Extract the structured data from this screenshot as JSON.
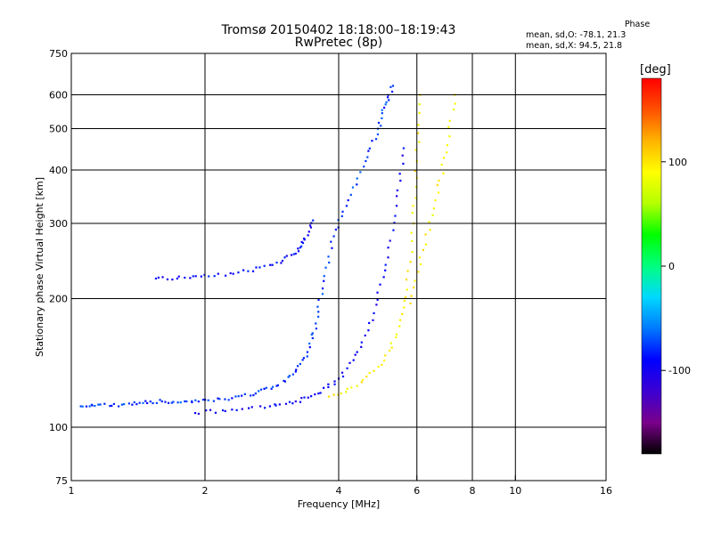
{
  "chart_data": {
    "type": "scatter",
    "title": "Tromsø 20150402 18:18:00–18:19:43",
    "subtitle": "RwPretec (8p)",
    "xlabel": "Frequency [MHz]",
    "ylabel": "Stationary phase Virtual Height [km]",
    "xscale": "log",
    "yscale": "log",
    "xlim": [
      1,
      16
    ],
    "ylim": [
      75,
      750
    ],
    "x_ticks": [
      1,
      2,
      4,
      6,
      8,
      10,
      16
    ],
    "x_tick_labels": [
      "1",
      "2",
      "4",
      "6",
      "8",
      "10",
      "16"
    ],
    "y_ticks": [
      75,
      100,
      200,
      300,
      400,
      500,
      600,
      750
    ],
    "y_tick_labels": [
      "75",
      "100",
      "200",
      "300",
      "400",
      "500",
      "600",
      "750"
    ],
    "grid_x": [
      2,
      4,
      6,
      8,
      10
    ],
    "grid_y": [
      100,
      200,
      300,
      400,
      500,
      600
    ],
    "colorbar": {
      "label": "[deg]",
      "range": [
        -180,
        180
      ],
      "ticks": [
        100,
        0,
        -100
      ],
      "tick_labels": [
        "100",
        "0",
        "-100"
      ],
      "colormap": [
        "#000000",
        "#7a008a",
        "#3c00d2",
        "#0000ff",
        "#0078ff",
        "#00d8ff",
        "#00ff80",
        "#00ff00",
        "#b4ff00",
        "#ffff00",
        "#ffb400",
        "#ff5000",
        "#ff0000"
      ]
    },
    "phase_stats": {
      "header": "Phase",
      "line_o": "mean, sd,O: -78.1, 21.3",
      "line_x": "mean, sd,X:  94.5, 21.8"
    },
    "series": [
      {
        "mode": "O",
        "phase": -78,
        "x": [
          1.05,
          1.15,
          1.3,
          1.45,
          1.6,
          1.8,
          2.0,
          2.3,
          2.6,
          2.9,
          3.2,
          3.4,
          3.55,
          3.7,
          3.9,
          4.2,
          4.6,
          4.9,
          5.1,
          5.3
        ],
        "y": [
          112,
          113,
          113,
          114,
          115,
          115,
          116,
          117,
          120,
          125,
          135,
          150,
          175,
          220,
          280,
          340,
          420,
          500,
          570,
          630
        ]
      },
      {
        "mode": "O",
        "phase": -90,
        "x": [
          1.55,
          1.8,
          2.1,
          2.5,
          2.9,
          3.2,
          3.35,
          3.5
        ],
        "y": [
          223,
          224,
          226,
          232,
          243,
          255,
          275,
          305
        ]
      },
      {
        "mode": "O",
        "phase": -95,
        "x": [
          1.9,
          2.3,
          2.8,
          3.2,
          3.6,
          4.0,
          4.4,
          4.8,
          5.1,
          5.4,
          5.6
        ],
        "y": [
          108,
          110,
          112,
          115,
          120,
          130,
          150,
          185,
          240,
          330,
          450
        ]
      },
      {
        "mode": "X",
        "phase": 95,
        "x": [
          3.8,
          4.4,
          5.0,
          5.4,
          5.7,
          5.9,
          6.0,
          6.1
        ],
        "y": [
          118,
          125,
          140,
          165,
          210,
          300,
          420,
          600
        ]
      },
      {
        "mode": "X",
        "phase": 95,
        "x": [
          5.8,
          6.2,
          6.6,
          7.0,
          7.3
        ],
        "y": [
          195,
          260,
          340,
          440,
          600
        ]
      }
    ]
  }
}
